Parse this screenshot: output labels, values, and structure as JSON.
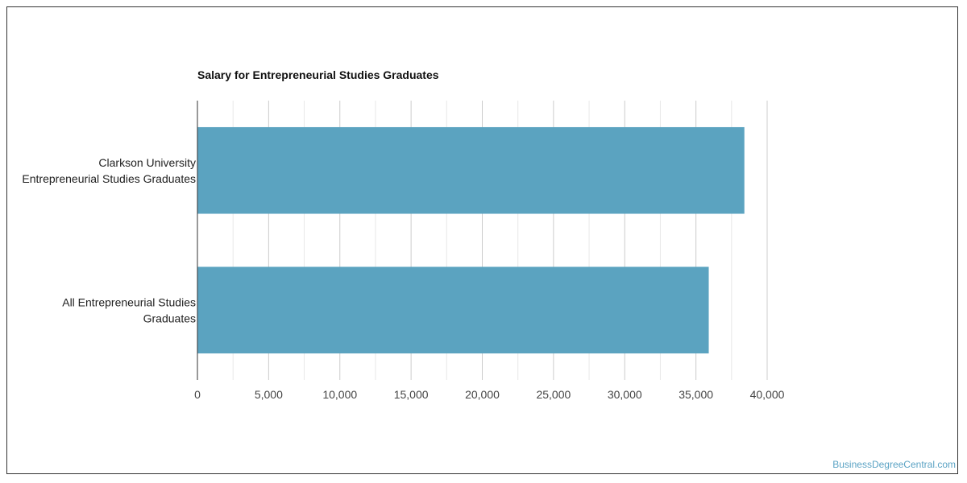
{
  "chart_data": {
    "type": "bar",
    "orientation": "horizontal",
    "title": "Salary for Entrepreneurial Studies Graduates",
    "categories": [
      [
        "Clarkson University",
        "Entrepreneurial Studies Graduates"
      ],
      [
        "All Entrepreneurial Studies",
        "Graduates"
      ]
    ],
    "values": [
      38400,
      35900
    ],
    "xlim": [
      0,
      40000
    ],
    "xticks": [
      0,
      5000,
      10000,
      15000,
      20000,
      25000,
      30000,
      35000,
      40000
    ],
    "xtick_labels": [
      "0",
      "5,000",
      "10,000",
      "15,000",
      "20,000",
      "25,000",
      "30,000",
      "35,000",
      "40,000"
    ],
    "grid": true,
    "legend": "none",
    "bar_color": "#5ba3c0",
    "grid_color": "#dddddd"
  },
  "watermark": "BusinessDegreeCentral.com"
}
